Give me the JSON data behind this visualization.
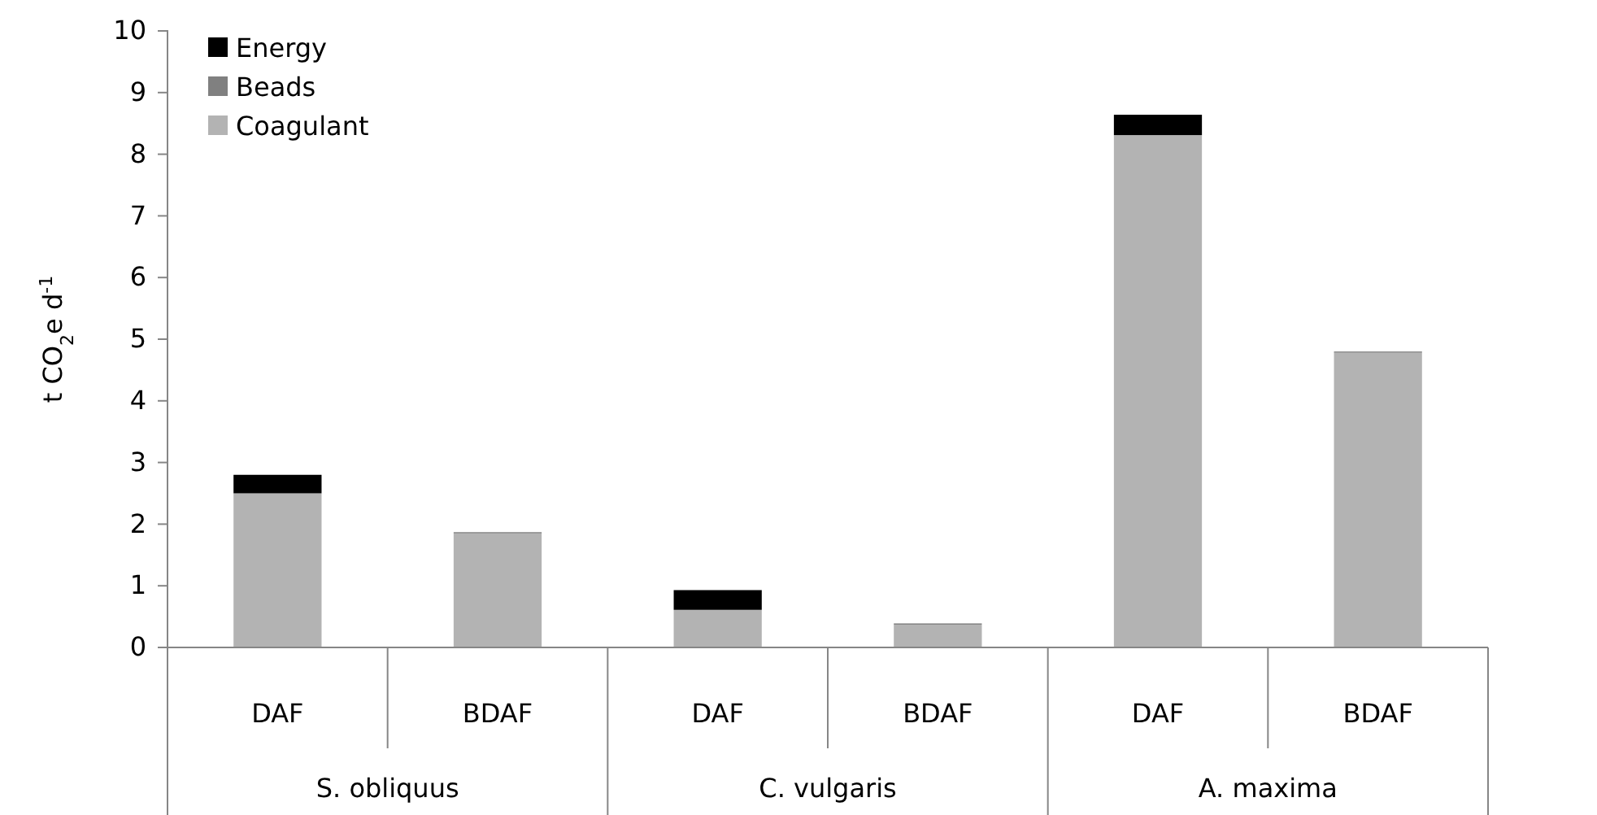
{
  "chart_data": {
    "type": "bar",
    "stacked": true,
    "ylabel": "t CO$_{2}$e d$^{-1}$",
    "categories": [
      "DAF",
      "BDAF",
      "DAF",
      "BDAF",
      "DAF",
      "BDAF"
    ],
    "series": [
      {
        "name": "Coagulant",
        "color": "#b3b3b3",
        "values": [
          2.5,
          1.85,
          0.61,
          0.37,
          8.31,
          4.78
        ]
      },
      {
        "name": "Beads",
        "color": "#808080",
        "values": [
          0,
          0.02,
          0,
          0.02,
          0,
          0.02
        ]
      },
      {
        "name": "Energy",
        "color": "#000000",
        "values": [
          0.3,
          0,
          0.32,
          0,
          0.33,
          0
        ]
      }
    ],
    "annotations": [
      "S. obliquus",
      "C. vulgaris",
      "A. maxima"
    ],
    "ylim": [
      0,
      10
    ],
    "yticks": [
      0,
      1,
      2,
      3,
      4,
      5,
      6,
      7,
      8,
      9,
      10
    ],
    "grid": false,
    "legend": "top left"
  }
}
